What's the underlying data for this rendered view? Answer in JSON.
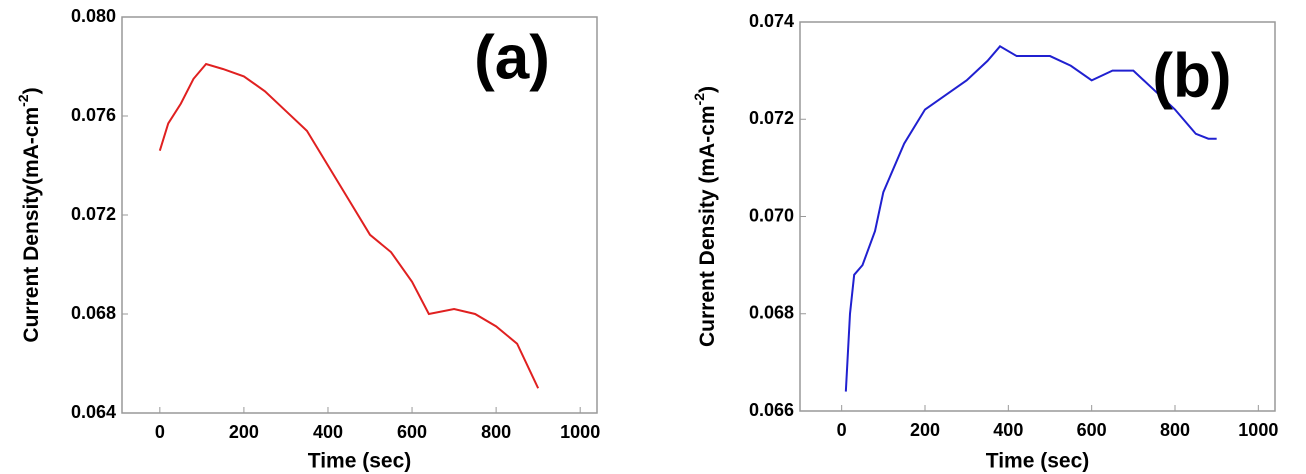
{
  "chart_data": [
    {
      "type": "line",
      "annotation": "(a)",
      "xlabel": "Time (sec)",
      "ylabel": {
        "text": "Current Density(mA-cm",
        "superscript": "-2",
        "close": ")"
      },
      "x": [
        0,
        20,
        50,
        80,
        110,
        150,
        200,
        250,
        300,
        350,
        400,
        450,
        500,
        550,
        600,
        640,
        700,
        750,
        800,
        850,
        900
      ],
      "series": [
        {
          "name": "a",
          "color": "#e02020",
          "values": [
            0.0746,
            0.0757,
            0.0765,
            0.0775,
            0.0781,
            0.0779,
            0.0776,
            0.077,
            0.0762,
            0.0754,
            0.074,
            0.0726,
            0.0712,
            0.0705,
            0.0693,
            0.068,
            0.0682,
            0.068,
            0.0675,
            0.0668,
            0.065
          ]
        }
      ],
      "xlim": [
        -90,
        1040
      ],
      "xticks": [
        0,
        200,
        400,
        600,
        800,
        1000
      ],
      "ylim": [
        0.064,
        0.08
      ],
      "yticks": [
        {
          "value": 0.064,
          "label": "0.064"
        },
        {
          "value": 0.068,
          "label": "0.068"
        },
        {
          "value": 0.072,
          "label": "0.072"
        },
        {
          "value": 0.076,
          "label": "0.076"
        },
        {
          "value": 0.08,
          "label": "0.080"
        }
      ]
    },
    {
      "type": "line",
      "annotation": "(b)",
      "xlabel": "Time (sec)",
      "ylabel": {
        "text": "Current Density (mA-cm",
        "superscript": "-2",
        "close": ")"
      },
      "x": [
        10,
        20,
        30,
        50,
        80,
        100,
        150,
        200,
        250,
        300,
        350,
        380,
        420,
        500,
        550,
        600,
        650,
        700,
        750,
        800,
        850,
        880,
        900
      ],
      "series": [
        {
          "name": "b",
          "color": "#2020d0",
          "values": [
            0.0664,
            0.068,
            0.0688,
            0.069,
            0.0697,
            0.0705,
            0.0715,
            0.0722,
            0.0725,
            0.0728,
            0.0732,
            0.0735,
            0.0733,
            0.0733,
            0.0731,
            0.0728,
            0.073,
            0.073,
            0.0726,
            0.0722,
            0.0717,
            0.0716,
            0.0716
          ]
        }
      ],
      "xlim": [
        -100,
        1040
      ],
      "xticks": [
        0,
        200,
        400,
        600,
        800,
        1000
      ],
      "ylim": [
        0.066,
        0.074
      ],
      "yticks": [
        {
          "value": 0.066,
          "label": "0.066"
        },
        {
          "value": 0.068,
          "label": "0.068"
        },
        {
          "value": 0.07,
          "label": "0.070"
        },
        {
          "value": 0.072,
          "label": "0.072"
        },
        {
          "value": 0.074,
          "label": "0.074"
        }
      ]
    }
  ]
}
